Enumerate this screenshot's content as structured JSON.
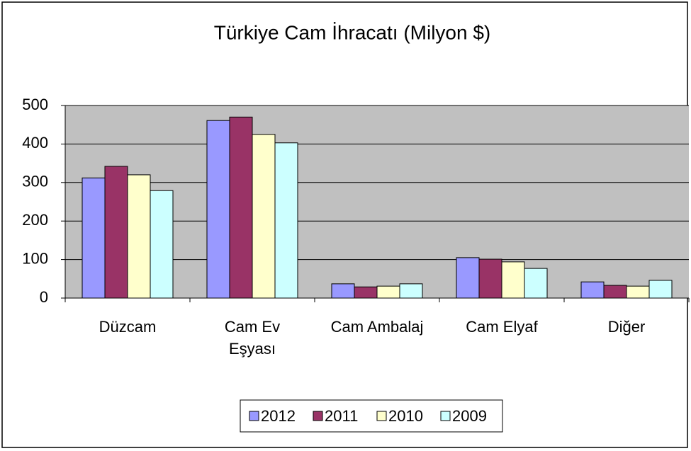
{
  "chart_data": {
    "type": "bar",
    "title": "Türkiye Cam İhracatı (Milyon $)",
    "categories": [
      "Düzcam",
      "Cam Ev Eşyası",
      "Cam Ambalaj",
      "Cam Elyaf",
      "Diğer"
    ],
    "series": [
      {
        "name": "2012",
        "color": "#9999ff",
        "values": [
          312,
          461,
          37,
          105,
          42
        ]
      },
      {
        "name": "2011",
        "color": "#993366",
        "values": [
          342,
          470,
          29,
          101,
          33
        ]
      },
      {
        "name": "2010",
        "color": "#ffffcc",
        "values": [
          320,
          425,
          31,
          94,
          31
        ]
      },
      {
        "name": "2009",
        "color": "#ccffff",
        "values": [
          279,
          403,
          37,
          77,
          46
        ]
      }
    ],
    "ylim": [
      0,
      500
    ],
    "yticks": [
      0,
      100,
      200,
      300,
      400,
      500
    ],
    "grid": true,
    "legend": "bottom"
  }
}
